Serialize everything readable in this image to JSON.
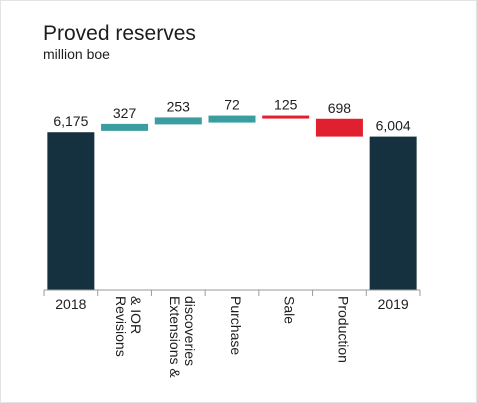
{
  "chart_data": {
    "type": "waterfall",
    "title": "Proved reserves",
    "subtitle": "million boe",
    "categories": [
      "2018",
      "Revisions & IOR",
      "Extensions & discoveries",
      "Purchase",
      "Sale",
      "Production",
      "2019"
    ],
    "tick_labels": [
      [
        "2018"
      ],
      [
        "Revisions",
        "& IOR"
      ],
      [
        "Extensions &",
        "discoveries"
      ],
      [
        "Purchase"
      ],
      [
        "Sale"
      ],
      [
        "Production"
      ],
      [
        "2019"
      ]
    ],
    "value_labels": [
      "6,175",
      "327",
      "253",
      "72",
      "125",
      "698",
      "6,004"
    ],
    "values": [
      6175,
      327,
      253,
      72,
      -125,
      -698,
      6004
    ],
    "kinds": [
      "total",
      "delta",
      "delta",
      "delta",
      "delta",
      "delta",
      "total"
    ],
    "ylim": [
      0,
      9000
    ],
    "grid": false,
    "colors": {
      "total": "#15303e",
      "increase": "#3a9ea1",
      "decrease": "#e0202e",
      "axis": "#9a9a9a",
      "text": "#1d1d1d"
    }
  }
}
